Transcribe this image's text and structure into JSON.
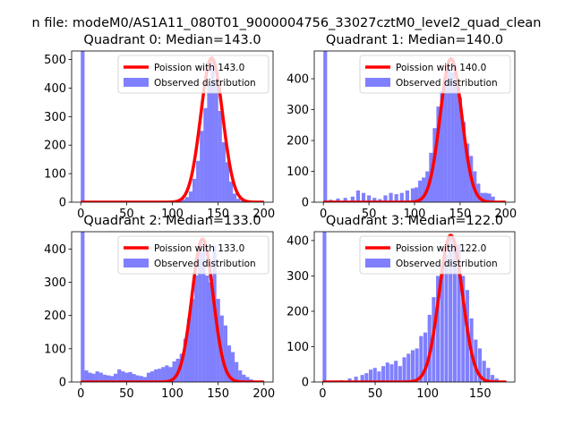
{
  "figure_title": "n file: modeM0/AS1A11_080T01_9000004756_33027cztM0_level2_quad_clean",
  "colors": {
    "hist": "#8080ff",
    "fit": "#ff0000",
    "axis": "#000000",
    "background": "#ffffff"
  },
  "chart_data": [
    {
      "type": "bar",
      "title": "Quadrant 0: Median=143.0",
      "legend": {
        "location": "top-right",
        "fit_label": "Poission with 143.0",
        "hist_label": "Observed distribution"
      },
      "xlim": [
        -10,
        210
      ],
      "ylim": [
        0,
        530
      ],
      "xticks": [
        0,
        50,
        100,
        150,
        200
      ],
      "yticks": [
        0,
        100,
        200,
        300,
        400,
        500
      ],
      "bin_width": 4.1,
      "hist_bins": [
        {
          "x": 0,
          "count": 530
        },
        {
          "x": 4,
          "count": 2
        },
        {
          "x": 102,
          "count": 3
        },
        {
          "x": 106,
          "count": 6
        },
        {
          "x": 110,
          "count": 10
        },
        {
          "x": 114,
          "count": 18
        },
        {
          "x": 118,
          "count": 38
        },
        {
          "x": 122,
          "count": 82
        },
        {
          "x": 126,
          "count": 145
        },
        {
          "x": 130,
          "count": 250
        },
        {
          "x": 134,
          "count": 330
        },
        {
          "x": 138,
          "count": 410
        },
        {
          "x": 142,
          "count": 495
        },
        {
          "x": 146,
          "count": 430
        },
        {
          "x": 150,
          "count": 320
        },
        {
          "x": 154,
          "count": 210
        },
        {
          "x": 158,
          "count": 140
        },
        {
          "x": 162,
          "count": 72
        },
        {
          "x": 166,
          "count": 30
        },
        {
          "x": 170,
          "count": 12
        },
        {
          "x": 174,
          "count": 5
        },
        {
          "x": 178,
          "count": 3
        }
      ],
      "fit_mean": 143.0,
      "fit_peak": 505,
      "fit_range": [
        0,
        200
      ]
    },
    {
      "type": "bar",
      "title": "Quadrant 1: Median=140.0",
      "legend": {
        "location": "top-right",
        "fit_label": "Poission with 140.0",
        "hist_label": "Observed distribution"
      },
      "xlim": [
        -10,
        210
      ],
      "ylim": [
        0,
        490
      ],
      "xticks": [
        0,
        50,
        100,
        150,
        200
      ],
      "yticks": [
        0,
        100,
        200,
        300,
        400
      ],
      "bin_width": 4.1,
      "hist_bins": [
        {
          "x": 0,
          "count": 490
        },
        {
          "x": 6,
          "count": 8
        },
        {
          "x": 14,
          "count": 12
        },
        {
          "x": 22,
          "count": 14
        },
        {
          "x": 30,
          "count": 18
        },
        {
          "x": 36,
          "count": 38
        },
        {
          "x": 42,
          "count": 30
        },
        {
          "x": 48,
          "count": 22
        },
        {
          "x": 54,
          "count": 14
        },
        {
          "x": 60,
          "count": 10
        },
        {
          "x": 66,
          "count": 22
        },
        {
          "x": 72,
          "count": 30
        },
        {
          "x": 78,
          "count": 26
        },
        {
          "x": 84,
          "count": 30
        },
        {
          "x": 90,
          "count": 38
        },
        {
          "x": 96,
          "count": 45
        },
        {
          "x": 100,
          "count": 48
        },
        {
          "x": 104,
          "count": 70
        },
        {
          "x": 108,
          "count": 80
        },
        {
          "x": 112,
          "count": 100
        },
        {
          "x": 116,
          "count": 160
        },
        {
          "x": 120,
          "count": 240
        },
        {
          "x": 124,
          "count": 310
        },
        {
          "x": 128,
          "count": 360
        },
        {
          "x": 132,
          "count": 410
        },
        {
          "x": 136,
          "count": 440
        },
        {
          "x": 140,
          "count": 420
        },
        {
          "x": 144,
          "count": 380
        },
        {
          "x": 148,
          "count": 340
        },
        {
          "x": 152,
          "count": 260
        },
        {
          "x": 156,
          "count": 190
        },
        {
          "x": 160,
          "count": 150
        },
        {
          "x": 164,
          "count": 100
        },
        {
          "x": 168,
          "count": 60
        },
        {
          "x": 172,
          "count": 30
        },
        {
          "x": 176,
          "count": 30
        },
        {
          "x": 180,
          "count": 28
        },
        {
          "x": 184,
          "count": 18
        }
      ],
      "fit_mean": 140.0,
      "fit_peak": 465,
      "fit_range": [
        0,
        200
      ]
    },
    {
      "type": "bar",
      "title": "Quadrant 2: Median=133.0",
      "legend": {
        "location": "top-right",
        "fit_label": "Poission with 133.0",
        "hist_label": "Observed distribution"
      },
      "xlim": [
        -10,
        210
      ],
      "ylim": [
        0,
        452
      ],
      "xticks": [
        0,
        50,
        100,
        150,
        200
      ],
      "yticks": [
        0,
        100,
        200,
        300,
        400
      ],
      "bin_width": 4.1,
      "hist_bins": [
        {
          "x": 0,
          "count": 452
        },
        {
          "x": 4,
          "count": 35
        },
        {
          "x": 8,
          "count": 28
        },
        {
          "x": 12,
          "count": 25
        },
        {
          "x": 16,
          "count": 32
        },
        {
          "x": 20,
          "count": 28
        },
        {
          "x": 24,
          "count": 22
        },
        {
          "x": 28,
          "count": 20
        },
        {
          "x": 32,
          "count": 18
        },
        {
          "x": 36,
          "count": 25
        },
        {
          "x": 40,
          "count": 38
        },
        {
          "x": 44,
          "count": 32
        },
        {
          "x": 48,
          "count": 28
        },
        {
          "x": 52,
          "count": 30
        },
        {
          "x": 56,
          "count": 24
        },
        {
          "x": 60,
          "count": 20
        },
        {
          "x": 64,
          "count": 18
        },
        {
          "x": 68,
          "count": 15
        },
        {
          "x": 72,
          "count": 28
        },
        {
          "x": 76,
          "count": 32
        },
        {
          "x": 80,
          "count": 38
        },
        {
          "x": 84,
          "count": 40
        },
        {
          "x": 88,
          "count": 45
        },
        {
          "x": 92,
          "count": 50
        },
        {
          "x": 96,
          "count": 45
        },
        {
          "x": 100,
          "count": 62
        },
        {
          "x": 104,
          "count": 70
        },
        {
          "x": 108,
          "count": 85
        },
        {
          "x": 112,
          "count": 130
        },
        {
          "x": 116,
          "count": 190
        },
        {
          "x": 120,
          "count": 250
        },
        {
          "x": 124,
          "count": 320
        },
        {
          "x": 128,
          "count": 390
        },
        {
          "x": 132,
          "count": 420
        },
        {
          "x": 136,
          "count": 320
        },
        {
          "x": 140,
          "count": 300
        },
        {
          "x": 144,
          "count": 410
        },
        {
          "x": 148,
          "count": 250
        },
        {
          "x": 152,
          "count": 200
        },
        {
          "x": 156,
          "count": 170
        },
        {
          "x": 160,
          "count": 110
        },
        {
          "x": 164,
          "count": 90
        },
        {
          "x": 168,
          "count": 60
        },
        {
          "x": 172,
          "count": 35
        },
        {
          "x": 176,
          "count": 22
        },
        {
          "x": 180,
          "count": 15
        },
        {
          "x": 184,
          "count": 8
        }
      ],
      "fit_mean": 133.0,
      "fit_peak": 430,
      "fit_range": [
        0,
        200
      ]
    },
    {
      "type": "bar",
      "title": "Quadrant 3: Median=122.0",
      "legend": {
        "location": "top-right",
        "fit_label": "Poission with 122.0",
        "hist_label": "Observed distribution"
      },
      "xlim": [
        -8,
        183
      ],
      "ylim": [
        0,
        425
      ],
      "xticks": [
        0,
        50,
        100,
        150
      ],
      "yticks": [
        0,
        100,
        200,
        300,
        400
      ],
      "bin_width": 3.5,
      "hist_bins": [
        {
          "x": 0,
          "count": 425
        },
        {
          "x": 16,
          "count": 5
        },
        {
          "x": 24,
          "count": 10
        },
        {
          "x": 30,
          "count": 15
        },
        {
          "x": 36,
          "count": 20
        },
        {
          "x": 40,
          "count": 25
        },
        {
          "x": 44,
          "count": 35
        },
        {
          "x": 48,
          "count": 40
        },
        {
          "x": 52,
          "count": 30
        },
        {
          "x": 56,
          "count": 45
        },
        {
          "x": 60,
          "count": 55
        },
        {
          "x": 64,
          "count": 50
        },
        {
          "x": 68,
          "count": 60
        },
        {
          "x": 72,
          "count": 45
        },
        {
          "x": 76,
          "count": 70
        },
        {
          "x": 80,
          "count": 80
        },
        {
          "x": 84,
          "count": 90
        },
        {
          "x": 88,
          "count": 95
        },
        {
          "x": 92,
          "count": 130
        },
        {
          "x": 96,
          "count": 140
        },
        {
          "x": 100,
          "count": 190
        },
        {
          "x": 104,
          "count": 240
        },
        {
          "x": 108,
          "count": 300
        },
        {
          "x": 112,
          "count": 330
        },
        {
          "x": 116,
          "count": 360
        },
        {
          "x": 120,
          "count": 410
        },
        {
          "x": 124,
          "count": 395
        },
        {
          "x": 128,
          "count": 390
        },
        {
          "x": 132,
          "count": 300
        },
        {
          "x": 136,
          "count": 260
        },
        {
          "x": 140,
          "count": 180
        },
        {
          "x": 144,
          "count": 120
        },
        {
          "x": 148,
          "count": 95
        },
        {
          "x": 152,
          "count": 60
        },
        {
          "x": 156,
          "count": 40
        },
        {
          "x": 160,
          "count": 20
        },
        {
          "x": 164,
          "count": 10
        }
      ],
      "fit_mean": 122.0,
      "fit_peak": 415,
      "fit_range": [
        0,
        175
      ]
    }
  ]
}
